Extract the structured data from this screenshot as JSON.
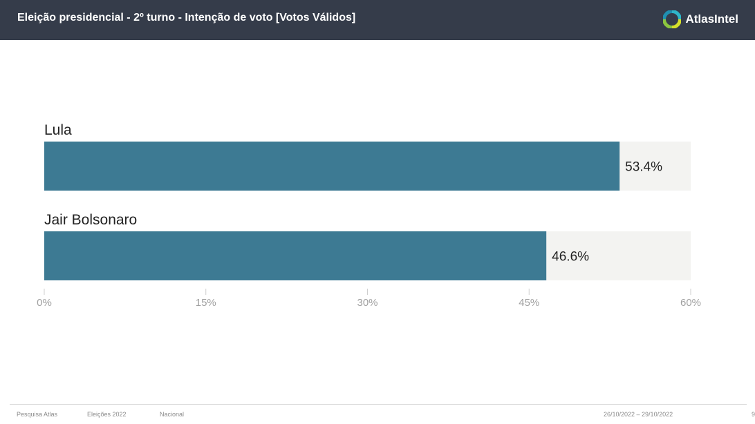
{
  "header": {
    "title": "Eleição presidencial - 2º turno - Intenção de voto [Votos Válidos]",
    "brand": "AtlasIntel",
    "brand_logo_icon": "atlasintel-logo-icon"
  },
  "colors": {
    "header_bg": "#353c4a",
    "bar": "#3d7a93",
    "track": "#f3f3f1",
    "axis_text": "#a0a0a0"
  },
  "chart_data": {
    "type": "bar",
    "orientation": "horizontal",
    "categories": [
      "Lula",
      "Jair Bolsonaro"
    ],
    "values": [
      53.4,
      46.6
    ],
    "data_labels": [
      "53.4%",
      "46.6%"
    ],
    "xlim": [
      0,
      60
    ],
    "x_ticks": [
      0,
      15,
      30,
      45,
      60
    ],
    "x_tick_labels": [
      "0%",
      "15%",
      "30%",
      "45%",
      "60%"
    ],
    "grid": false
  },
  "footer": {
    "source": "Pesquisa Atlas",
    "survey": "Eleições 2022",
    "scope": "Nacional",
    "dates": "26/10/2022 – 29/10/2022",
    "page": "9"
  }
}
